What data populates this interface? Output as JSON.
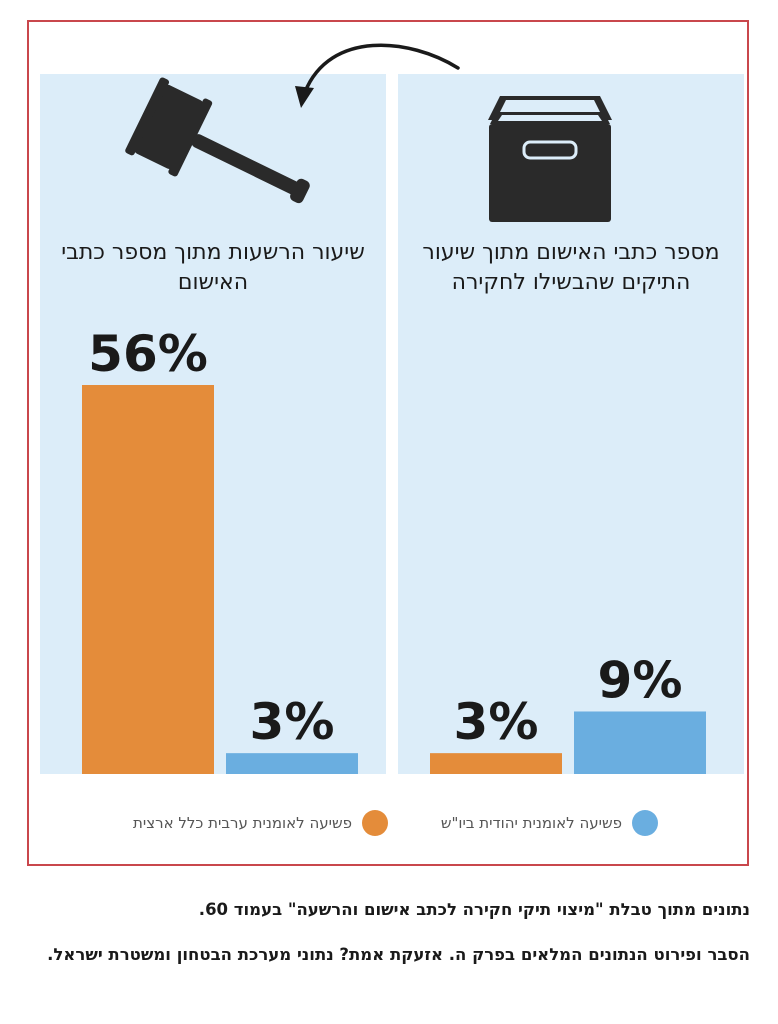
{
  "chart_data": [
    {
      "type": "bar",
      "title": "מספר כתבי האישום מתוך שיעור התיקים שהבשילו לחקירה",
      "categories": [
        "פשיעה לאומנית יהודית ביו\"ש",
        "פשיעה לאומנית ערבית כלל ארצית"
      ],
      "values": [
        9,
        3
      ],
      "labels": [
        "9%",
        "3%"
      ],
      "ylim": [
        0,
        60
      ]
    },
    {
      "type": "bar",
      "title": "שיעור הרשעות מתוך מספר כתבי האישום",
      "categories": [
        "פשיעה לאומנית יהודית ביו\"ש",
        "פשיעה לאומנית ערבית כלל ארצית"
      ],
      "values": [
        3,
        56
      ],
      "labels": [
        "3%",
        "56%"
      ],
      "ylim": [
        0,
        60
      ]
    }
  ],
  "legend": {
    "jewish": {
      "label": "פשיעה לאומנית יהודית ביו\"ש",
      "color": "#6aaee0"
    },
    "arab": {
      "label": "פשיעה לאומנית ערבית כלל ארצית",
      "color": "#e48c3a"
    }
  },
  "icons": {
    "right": "archive-box-icon",
    "left": "gavel-icon",
    "arrow": "curved-arrow-icon"
  },
  "notes": {
    "line1": "נתונים מתוך טבלת \"מיצוי תיקי חקירה לכתב אישום והרשעה\" בעמוד 60.",
    "line2": "הסבר ופירוט הנתונים המלאים בפרק ה. אזעקת אמת? נתוני מערכת הבטחון ומשטרת ישראל."
  },
  "colors": {
    "frame": "#c9474c",
    "panel": "#dcedf9",
    "jewish": "#6aaee0",
    "arab": "#e48c3a"
  }
}
